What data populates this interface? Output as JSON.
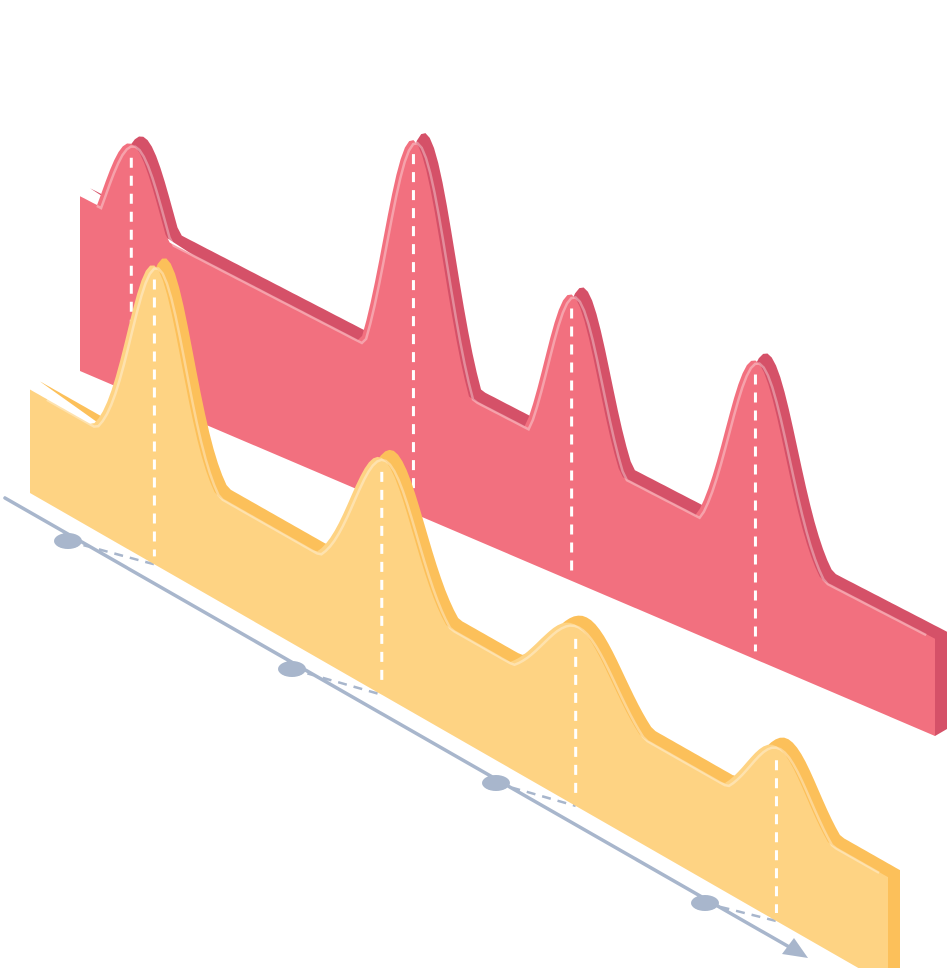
{
  "chart_data": {
    "type": "area",
    "style": "isometric-3d",
    "title": "",
    "xlabel": "",
    "ylabel": "",
    "grid": false,
    "legend": "none",
    "x_markers": 4,
    "series": [
      {
        "color": "#f2707f",
        "side_color": "#d55168",
        "peaks": [
          2.6,
          4.6,
          3.2,
          3.4
        ]
      },
      {
        "color": "#fed383",
        "side_color": "#fcc05a",
        "peaks": [
          3.4,
          2.4,
          1.5,
          1.4
        ]
      }
    ]
  },
  "colors": {
    "axis": "#a8b6cc",
    "guide": "#ffffff"
  }
}
